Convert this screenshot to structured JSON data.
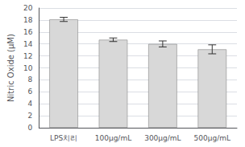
{
  "chart_data": {
    "type": "bar",
    "categories": [
      "LPS치리",
      "100μg/mL",
      "300μg/mL",
      "500μg/mL"
    ],
    "values": [
      18.1,
      14.7,
      14.0,
      13.1
    ],
    "errors": [
      0.35,
      0.3,
      0.5,
      0.75
    ],
    "color": "#d8d8d8",
    "ylabel": "Nitric Oxide (μM)",
    "ylim": [
      0,
      20
    ],
    "yticks": [
      0,
      2,
      4,
      6,
      8,
      10,
      12,
      14,
      16,
      18,
      20
    ],
    "grid": true
  }
}
